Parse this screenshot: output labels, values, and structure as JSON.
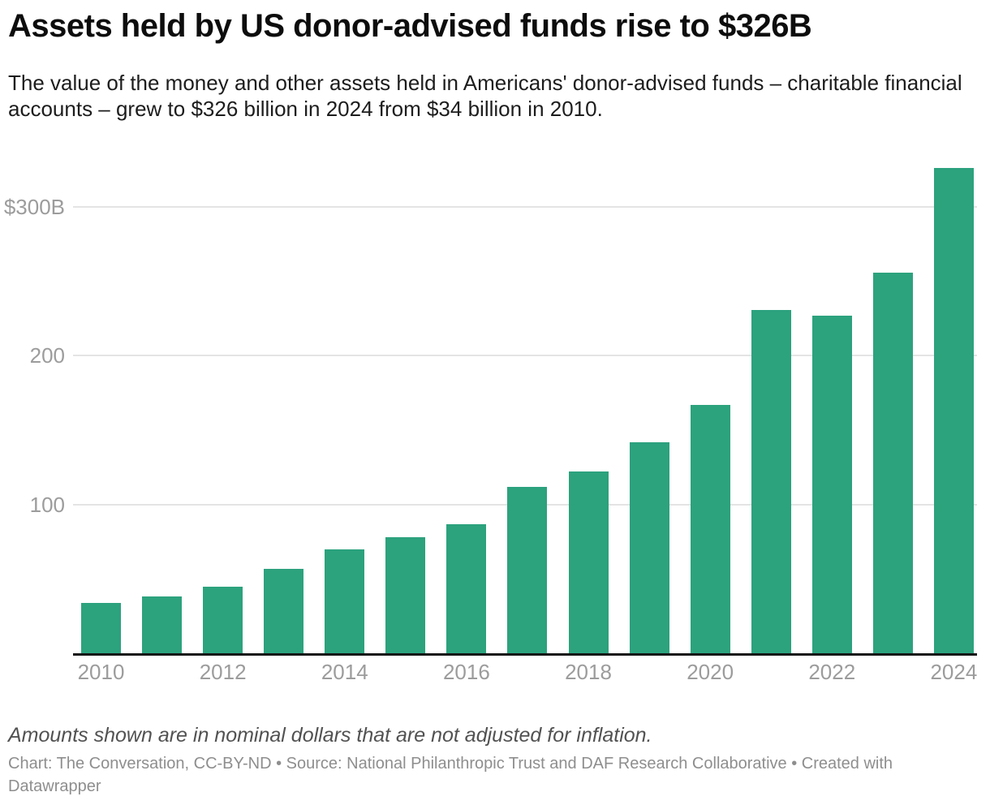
{
  "header": {
    "title": "Assets held by US donor-advised funds rise to $326B",
    "subtitle": "The value of the money and other assets held in Americans' donor-advised funds – charitable financial accounts – grew to $326 billion in 2024 from $34 billion in 2010."
  },
  "chart_data": {
    "type": "bar",
    "title": "Assets held by US donor-advised funds rise to $326B",
    "categories": [
      "2010",
      "2011",
      "2012",
      "2013",
      "2014",
      "2015",
      "2016",
      "2017",
      "2018",
      "2019",
      "2020",
      "2021",
      "2022",
      "2023",
      "2024"
    ],
    "values": [
      34,
      38,
      45,
      57,
      70,
      78,
      87,
      112,
      122,
      142,
      167,
      231,
      227,
      256,
      326
    ],
    "x_tick_labels": [
      "2010",
      "2012",
      "2014",
      "2016",
      "2018",
      "2020",
      "2022",
      "2024"
    ],
    "y_ticks": [
      {
        "value": 100,
        "label": "100"
      },
      {
        "value": 200,
        "label": "200"
      },
      {
        "value": 300,
        "label": "$300B"
      }
    ],
    "ylim": [
      0,
      335
    ],
    "xlabel": "",
    "ylabel": "",
    "bar_color": "#2CA27D",
    "grid": true,
    "gridline_color": "#e4e4e4",
    "axis_color": "#151515",
    "legend": false
  },
  "footer": {
    "note": "Amounts shown are in nominal dollars that are not adjusted for inflation.",
    "credit": "Chart: The Conversation, CC-BY-ND • Source: National Philanthropic Trust and DAF Research Collaborative • Created with Datawrapper"
  }
}
